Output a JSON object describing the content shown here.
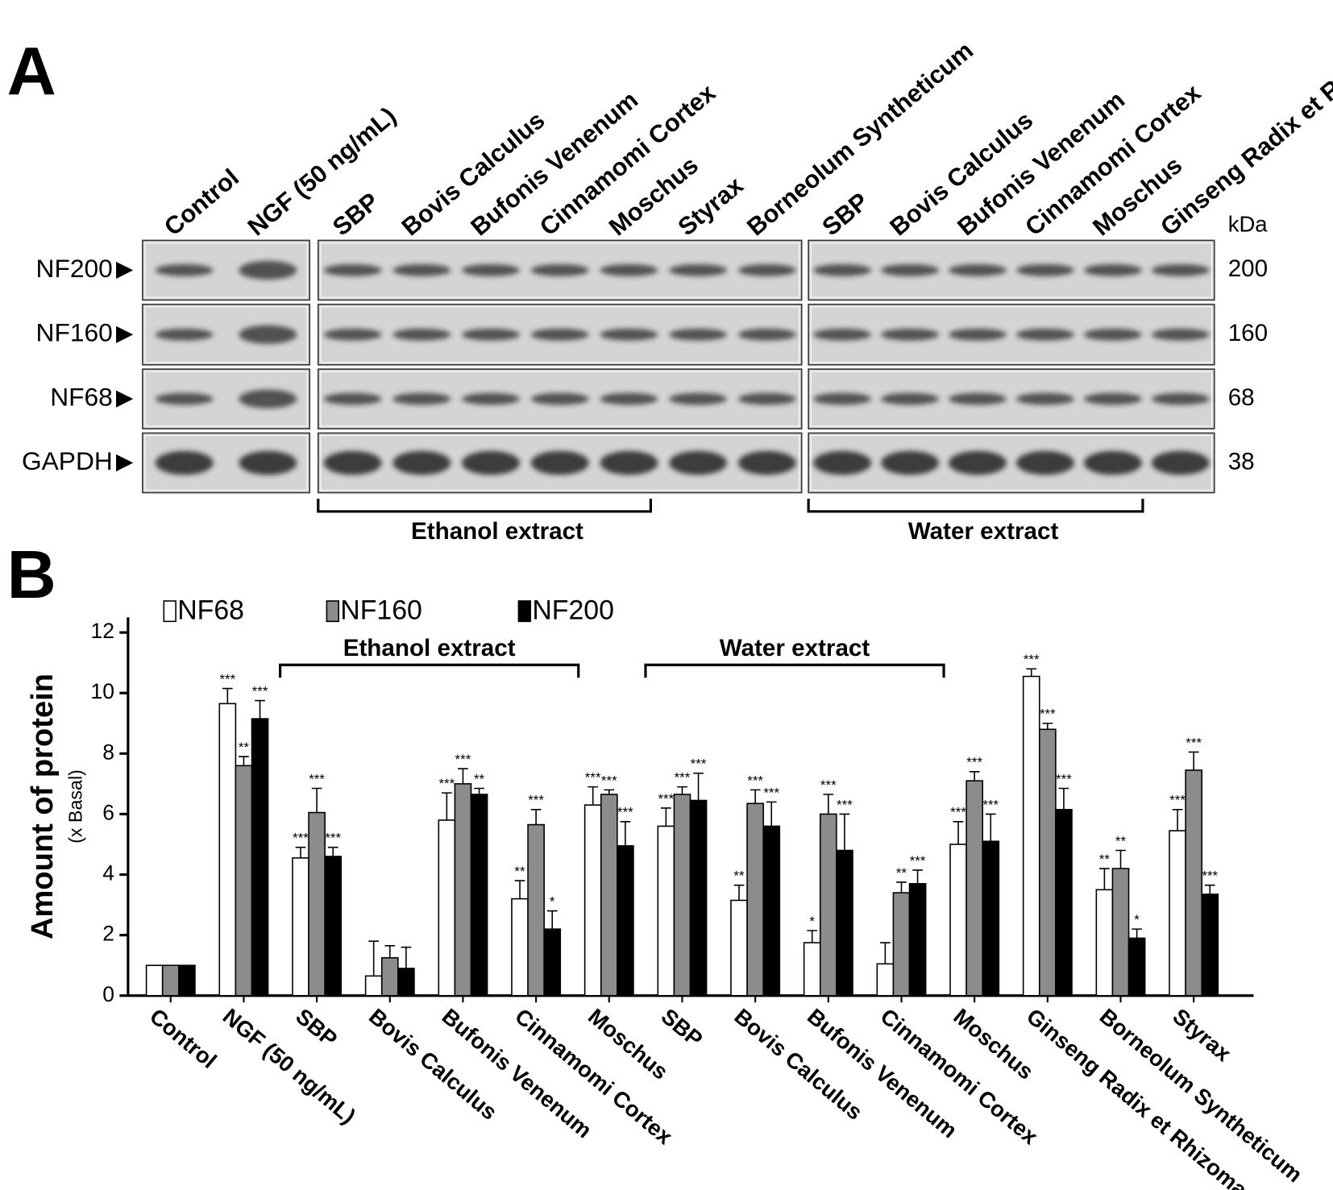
{
  "panel_a": {
    "letter": "A",
    "lanes": [
      "Control",
      "NGF (50 ng/mL)",
      "SBP",
      "Bovis Calculus",
      "Bufonis Venenum",
      "Cinnamomi Cortex",
      "Moschus",
      "Styrax",
      "Borneolum Syntheticum",
      "SBP",
      "Bovis Calculus",
      "Bufonis Venenum",
      "Cinnamomi Cortex",
      "Moschus",
      "Ginseng Radix et Rhizoma"
    ],
    "rows": [
      "NF200",
      "NF160",
      "NF68",
      "GAPDH"
    ],
    "unit": "kDa",
    "sizes": [
      "200",
      "160",
      "68",
      "38"
    ],
    "groups": [
      "Ethanol extract",
      "Water extract"
    ]
  },
  "chart_data": {
    "type": "bar",
    "letter": "B",
    "y_label": "Amount of protein",
    "y_sublabel": "(x Basal)",
    "categories": [
      "Control",
      "NGF (50 ng/mL)",
      "SBP",
      "Bovis Calculus",
      "Bufonis Venenum",
      "Cinnamomi Cortex",
      "Moschus",
      "SBP",
      "Bovis Calculus",
      "Bufonis Venenum",
      "Cinnamomi Cortex",
      "Moschus",
      "Ginseng Radix et Rhizoma",
      "Borneolum Syntheticum",
      "Styrax"
    ],
    "group_labels": [
      "Ethanol extract",
      "Water extract"
    ],
    "series": [
      {
        "name": "NF68",
        "color": "#ffffff",
        "values": [
          1,
          9.65,
          4.55,
          0.65,
          5.8,
          3.2,
          6.3,
          5.6,
          3.15,
          1.75,
          1.05,
          5.0,
          10.55,
          3.5,
          5.45
        ],
        "errors": [
          0,
          0.5,
          0.35,
          1.15,
          0.9,
          0.6,
          0.6,
          0.6,
          0.5,
          0.4,
          0.7,
          0.75,
          0.25,
          0.7,
          0.7
        ],
        "stars": [
          null,
          "***",
          "***",
          null,
          "***",
          "**",
          "***",
          "***",
          "**",
          "*",
          null,
          "***",
          "***",
          "**",
          "***"
        ]
      },
      {
        "name": "NF160",
        "color": "#8c8c8c",
        "values": [
          1,
          7.6,
          6.05,
          1.25,
          7.0,
          5.65,
          6.65,
          6.65,
          6.35,
          6.0,
          3.4,
          7.1,
          8.8,
          4.2,
          7.45
        ],
        "errors": [
          0,
          0.3,
          0.8,
          0.4,
          0.5,
          0.5,
          0.15,
          0.25,
          0.45,
          0.65,
          0.35,
          0.3,
          0.2,
          0.6,
          0.6
        ],
        "stars": [
          null,
          "**",
          "***",
          null,
          "***",
          "***",
          "***",
          "***",
          "***",
          "***",
          "**",
          "***",
          "***",
          "**",
          "***"
        ]
      },
      {
        "name": "NF200",
        "color": "#000000",
        "values": [
          1,
          9.15,
          4.6,
          0.9,
          6.65,
          2.2,
          4.95,
          6.45,
          5.6,
          4.8,
          3.7,
          5.1,
          6.15,
          1.9,
          3.35
        ],
        "errors": [
          0,
          0.6,
          0.3,
          0.7,
          0.2,
          0.6,
          0.8,
          0.9,
          0.8,
          1.2,
          0.45,
          0.9,
          0.7,
          0.3,
          0.3
        ],
        "stars": [
          null,
          "***",
          "***",
          null,
          "**",
          "*",
          "***",
          "***",
          "***",
          "***",
          "***",
          "***",
          "***",
          "*",
          "***"
        ]
      }
    ],
    "ylim": [
      0,
      12.5
    ],
    "yticks": [
      0,
      2,
      4,
      6,
      8,
      10,
      12
    ]
  }
}
